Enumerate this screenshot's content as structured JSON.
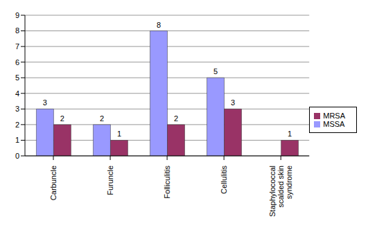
{
  "chart_data": {
    "type": "bar",
    "categories": [
      "Carbuncle",
      "Furuncle",
      "Folliculitis",
      "Cellulitis",
      "Staphylococcal scalded skin syndrome"
    ],
    "series": [
      {
        "name": "MSSA",
        "color": "#9999ff",
        "values": [
          3,
          2,
          8,
          5,
          0
        ]
      },
      {
        "name": "MRSA",
        "color": "#993366",
        "values": [
          2,
          1,
          2,
          3,
          1
        ]
      }
    ],
    "ylim": [
      0,
      9
    ],
    "yticks": [
      0,
      1,
      2,
      3,
      4,
      5,
      6,
      7,
      8,
      9
    ],
    "grid": true,
    "legend": "right",
    "data_labels": true
  }
}
